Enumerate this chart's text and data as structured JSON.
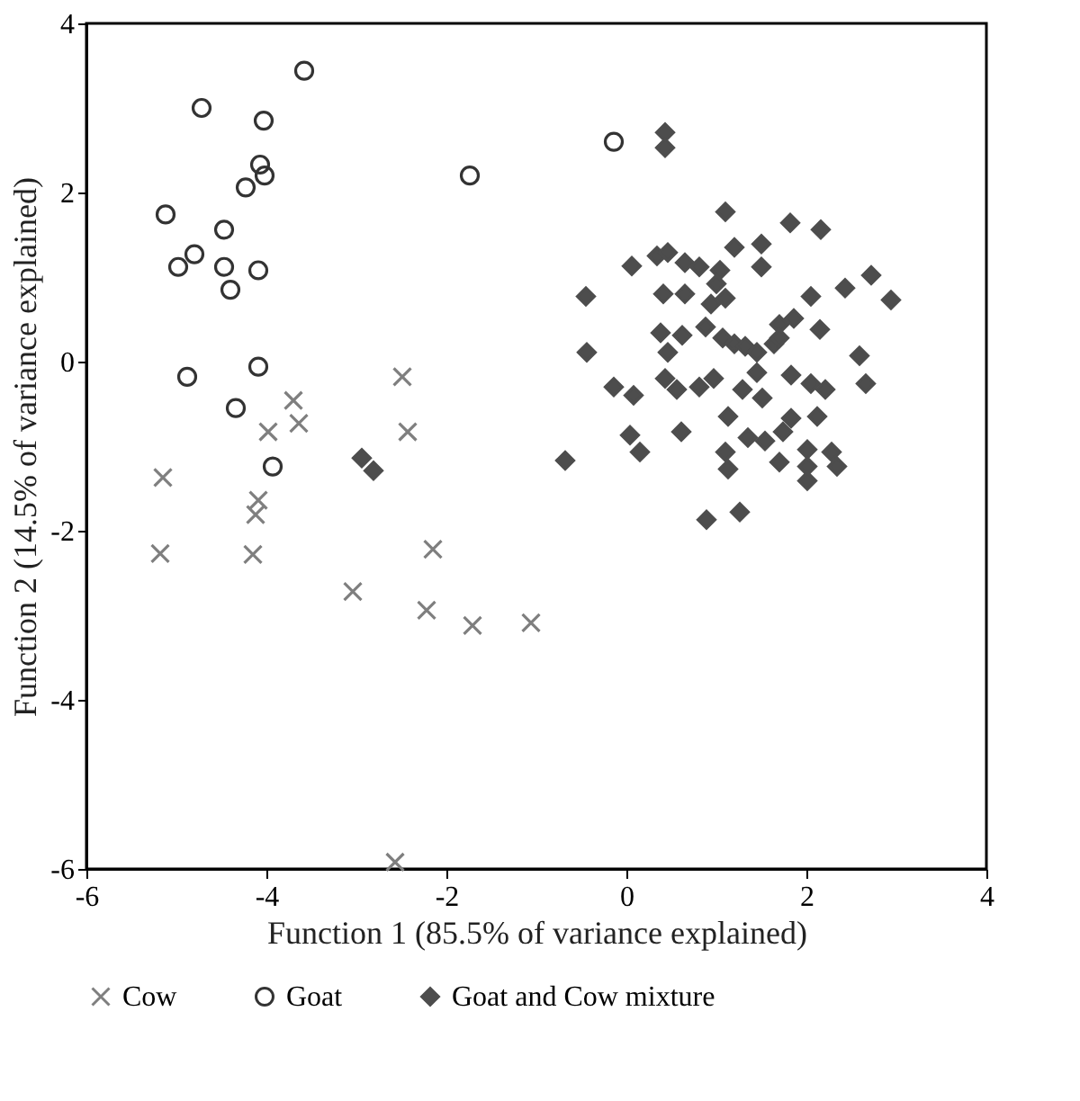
{
  "chart_data": {
    "type": "scatter",
    "xlabel": "Function 1 (85.5% of variance explained)",
    "ylabel": "Function 2 (14.5% of variance explained)",
    "xlim": [
      -6,
      4
    ],
    "xticks": [
      -6,
      -4,
      -2,
      0,
      2,
      4
    ],
    "ylim": [
      -6,
      4
    ],
    "yticks": [
      -6,
      -4,
      -2,
      0,
      2,
      4
    ],
    "grid": false,
    "legend": "bottom",
    "series": [
      {
        "name": "Cow",
        "color": "#7f7f7f",
        "marker": "cross",
        "x": [
          -2.49,
          -3.7,
          -3.98,
          -3.64,
          -2.43,
          -5.15,
          -4.09,
          -4.12,
          -5.18,
          -4.15,
          -2.15,
          -3.04,
          -2.22,
          -1.71,
          -1.06,
          -2.57
        ],
        "values": [
          -0.18,
          -0.46,
          -0.83,
          -0.73,
          -0.83,
          -1.37,
          -1.64,
          -1.81,
          -2.27,
          -2.28,
          -2.22,
          -2.72,
          -2.94,
          -3.12,
          -3.09,
          -5.92
        ]
      },
      {
        "name": "Goat",
        "color": "#333333",
        "marker": "circle",
        "x": [
          -3.58,
          -4.72,
          -4.03,
          -4.07,
          -4.02,
          -4.23,
          -1.74,
          -5.12,
          -4.47,
          -4.8,
          -4.98,
          -4.47,
          -4.09,
          -4.4,
          -4.88,
          -4.09,
          -4.34,
          -3.93,
          -0.14
        ],
        "values": [
          3.44,
          3.0,
          2.85,
          2.33,
          2.2,
          2.06,
          2.2,
          1.74,
          1.56,
          1.27,
          1.12,
          1.12,
          1.08,
          0.85,
          -0.18,
          -0.06,
          -0.55,
          -1.24,
          2.6
        ]
      },
      {
        "name": "Goat and Cow mixture",
        "color": "#4d4d4d",
        "marker": "diamond",
        "x": [
          -2.94,
          -2.81,
          -0.68,
          0.43,
          0.43,
          1.1,
          1.82,
          2.16,
          1.2,
          1.5,
          1.5,
          0.06,
          0.34,
          0.46,
          0.65,
          0.81,
          1.04,
          2.72,
          2.43,
          2.94,
          -0.45,
          0.41,
          0.65,
          1.0,
          1.1,
          0.94,
          2.05,
          1.86,
          1.7,
          2.15,
          0.38,
          0.62,
          0.88,
          1.07,
          1.2,
          1.32,
          1.45,
          1.64,
          0.46,
          -0.44,
          2.59,
          2.66,
          -0.14,
          0.08,
          0.43,
          0.56,
          0.81,
          0.97,
          1.29,
          1.45,
          1.51,
          1.83,
          2.05,
          2.21,
          1.13,
          0.61,
          0.04,
          0.15,
          1.35,
          1.54,
          1.74,
          1.83,
          2.12,
          1.1,
          1.13,
          1.7,
          2.01,
          2.01,
          2.01,
          2.28,
          2.34,
          0.89,
          1.26,
          1.7
        ],
        "values": [
          -1.14,
          -1.29,
          -1.17,
          2.71,
          2.53,
          1.77,
          1.64,
          1.56,
          1.35,
          1.39,
          1.12,
          1.13,
          1.25,
          1.29,
          1.17,
          1.12,
          1.08,
          1.02,
          0.87,
          0.73,
          0.77,
          0.8,
          0.8,
          0.92,
          0.75,
          0.68,
          0.77,
          0.51,
          0.44,
          0.38,
          0.34,
          0.31,
          0.41,
          0.28,
          0.21,
          0.18,
          0.11,
          0.21,
          0.11,
          0.11,
          0.07,
          -0.26,
          -0.3,
          -0.4,
          -0.2,
          -0.33,
          -0.3,
          -0.2,
          -0.33,
          -0.13,
          -0.43,
          -0.16,
          -0.26,
          -0.33,
          -0.65,
          -0.83,
          -0.87,
          -1.07,
          -0.9,
          -0.94,
          -0.83,
          -0.67,
          -0.65,
          -1.07,
          -1.27,
          -1.19,
          -1.04,
          -1.24,
          -1.41,
          -1.07,
          -1.24,
          -1.87,
          -1.78,
          0.28
        ]
      }
    ]
  }
}
